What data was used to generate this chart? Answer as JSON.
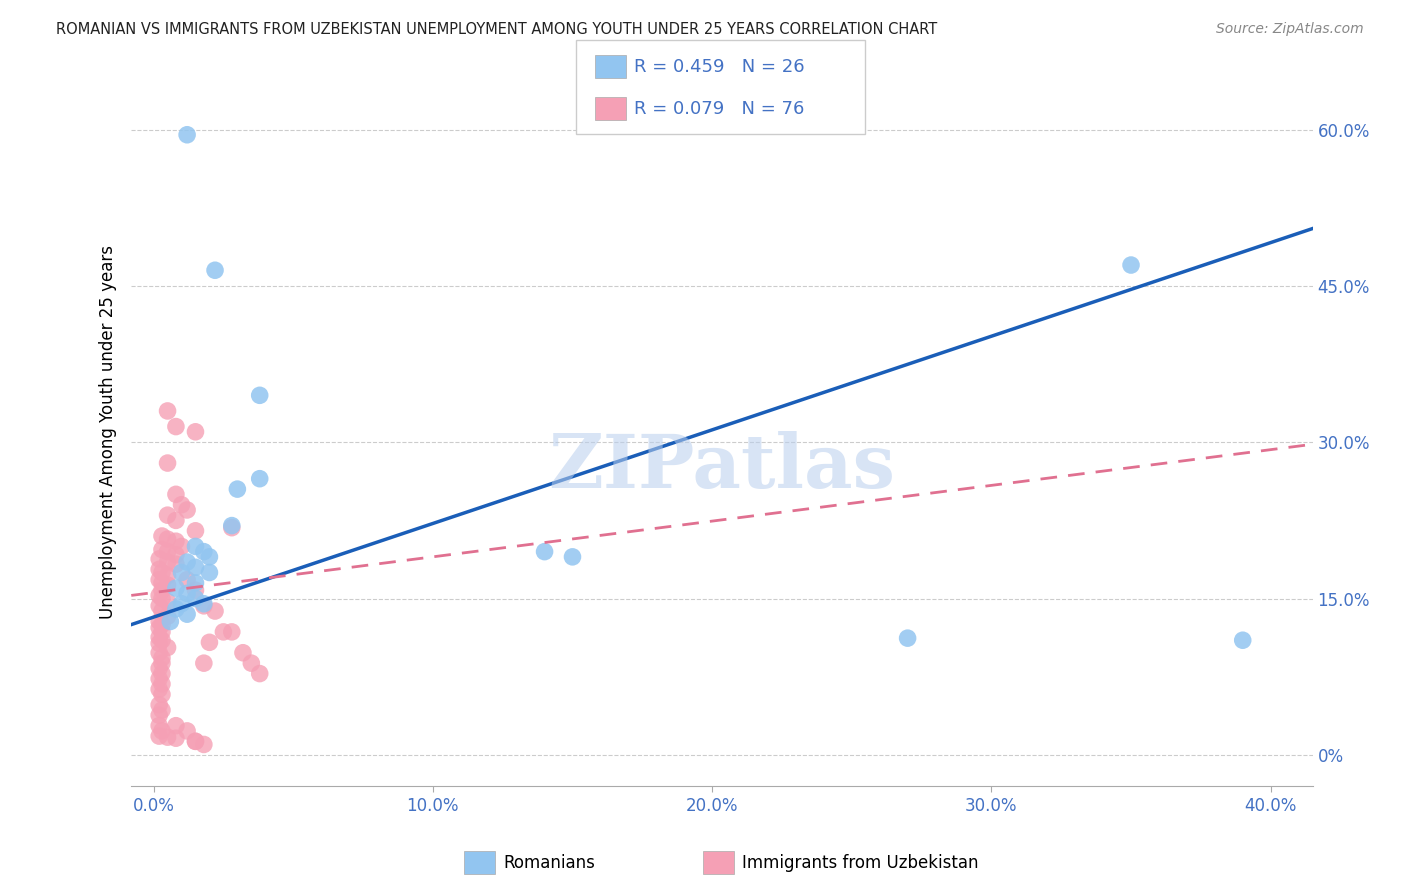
{
  "title": "ROMANIAN VS IMMIGRANTS FROM UZBEKISTAN UNEMPLOYMENT AMONG YOUTH UNDER 25 YEARS CORRELATION CHART",
  "source": "Source: ZipAtlas.com",
  "ylabel_label": "Unemployment Among Youth under 25 years",
  "xlabel_ticks": [
    0.0,
    0.1,
    0.2,
    0.3,
    0.4
  ],
  "yticks": [
    0.0,
    0.15,
    0.3,
    0.45,
    0.6
  ],
  "xlim": [
    -0.008,
    0.415
  ],
  "ylim": [
    -0.03,
    0.65
  ],
  "watermark": "ZIPatlas",
  "blue_color": "#92C5F0",
  "pink_color": "#F5A0B5",
  "blue_line_color": "#1a5eb8",
  "pink_line_color": "#e07090",
  "blue_scatter": [
    [
      0.012,
      0.595
    ],
    [
      0.022,
      0.465
    ],
    [
      0.038,
      0.345
    ],
    [
      0.038,
      0.265
    ],
    [
      0.03,
      0.255
    ],
    [
      0.028,
      0.22
    ],
    [
      0.015,
      0.2
    ],
    [
      0.018,
      0.195
    ],
    [
      0.02,
      0.19
    ],
    [
      0.012,
      0.185
    ],
    [
      0.015,
      0.18
    ],
    [
      0.01,
      0.175
    ],
    [
      0.02,
      0.175
    ],
    [
      0.015,
      0.165
    ],
    [
      0.008,
      0.16
    ],
    [
      0.012,
      0.155
    ],
    [
      0.015,
      0.15
    ],
    [
      0.01,
      0.145
    ],
    [
      0.018,
      0.145
    ],
    [
      0.008,
      0.14
    ],
    [
      0.012,
      0.135
    ],
    [
      0.006,
      0.128
    ],
    [
      0.14,
      0.195
    ],
    [
      0.15,
      0.19
    ],
    [
      0.27,
      0.112
    ],
    [
      0.35,
      0.47
    ],
    [
      0.39,
      0.11
    ]
  ],
  "pink_scatter": [
    [
      0.005,
      0.33
    ],
    [
      0.008,
      0.315
    ],
    [
      0.015,
      0.31
    ],
    [
      0.005,
      0.28
    ],
    [
      0.008,
      0.25
    ],
    [
      0.01,
      0.24
    ],
    [
      0.012,
      0.235
    ],
    [
      0.005,
      0.23
    ],
    [
      0.008,
      0.225
    ],
    [
      0.015,
      0.215
    ],
    [
      0.003,
      0.21
    ],
    [
      0.005,
      0.207
    ],
    [
      0.008,
      0.205
    ],
    [
      0.01,
      0.2
    ],
    [
      0.003,
      0.197
    ],
    [
      0.005,
      0.195
    ],
    [
      0.008,
      0.192
    ],
    [
      0.002,
      0.188
    ],
    [
      0.005,
      0.185
    ],
    [
      0.008,
      0.183
    ],
    [
      0.002,
      0.178
    ],
    [
      0.003,
      0.175
    ],
    [
      0.005,
      0.172
    ],
    [
      0.002,
      0.168
    ],
    [
      0.003,
      0.165
    ],
    [
      0.005,
      0.163
    ],
    [
      0.003,
      0.158
    ],
    [
      0.002,
      0.153
    ],
    [
      0.003,
      0.15
    ],
    [
      0.005,
      0.147
    ],
    [
      0.002,
      0.143
    ],
    [
      0.003,
      0.138
    ],
    [
      0.005,
      0.133
    ],
    [
      0.002,
      0.128
    ],
    [
      0.003,
      0.125
    ],
    [
      0.002,
      0.122
    ],
    [
      0.003,
      0.118
    ],
    [
      0.002,
      0.113
    ],
    [
      0.003,
      0.11
    ],
    [
      0.002,
      0.107
    ],
    [
      0.005,
      0.103
    ],
    [
      0.002,
      0.098
    ],
    [
      0.003,
      0.093
    ],
    [
      0.003,
      0.088
    ],
    [
      0.002,
      0.083
    ],
    [
      0.003,
      0.078
    ],
    [
      0.002,
      0.073
    ],
    [
      0.003,
      0.068
    ],
    [
      0.002,
      0.063
    ],
    [
      0.003,
      0.058
    ],
    [
      0.002,
      0.048
    ],
    [
      0.003,
      0.043
    ],
    [
      0.002,
      0.038
    ],
    [
      0.002,
      0.028
    ],
    [
      0.003,
      0.023
    ],
    [
      0.002,
      0.018
    ],
    [
      0.005,
      0.017
    ],
    [
      0.008,
      0.016
    ],
    [
      0.015,
      0.013
    ],
    [
      0.018,
      0.088
    ],
    [
      0.02,
      0.108
    ],
    [
      0.025,
      0.118
    ],
    [
      0.028,
      0.218
    ],
    [
      0.012,
      0.168
    ],
    [
      0.015,
      0.158
    ],
    [
      0.018,
      0.143
    ],
    [
      0.022,
      0.138
    ],
    [
      0.028,
      0.118
    ],
    [
      0.032,
      0.098
    ],
    [
      0.035,
      0.088
    ],
    [
      0.038,
      0.078
    ],
    [
      0.008,
      0.028
    ],
    [
      0.012,
      0.023
    ],
    [
      0.015,
      0.013
    ],
    [
      0.018,
      0.01
    ]
  ]
}
